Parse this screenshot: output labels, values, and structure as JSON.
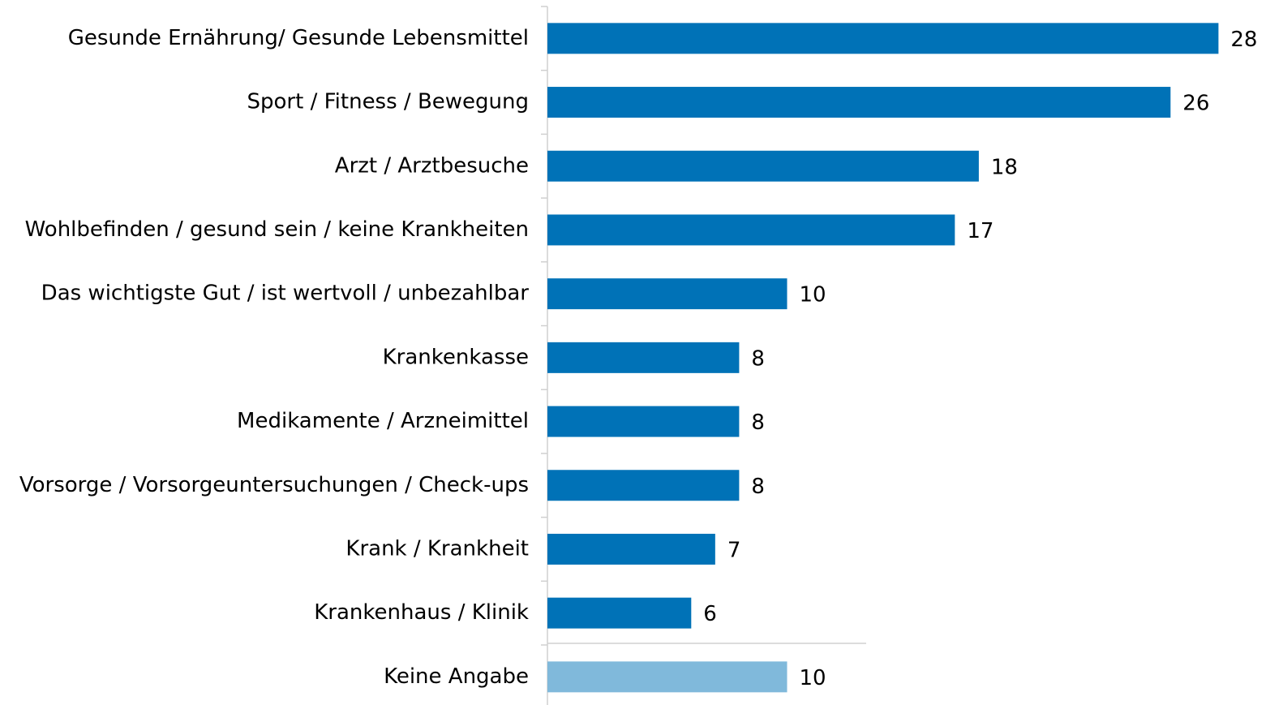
{
  "chart_data": {
    "type": "bar",
    "orientation": "horizontal",
    "categories": [
      "Gesunde Ernährung/ Gesunde Lebensmittel",
      "Sport / Fitness / Bewegung",
      "Arzt / Arztbesuche",
      "Wohlbefinden / gesund sein / keine Krankheiten",
      "Das wichtigste Gut / ist wertvoll / unbezahlbar",
      "Krankenkasse",
      "Medikamente / Arzneimittel",
      "Vorsorge / Vorsorgeuntersuchungen / Check-ups",
      "Krank / Krankheit",
      "Krankenhaus / Klinik",
      "Keine Angabe"
    ],
    "values": [
      28,
      26,
      18,
      17,
      10,
      8,
      8,
      8,
      7,
      6,
      10
    ],
    "colors": [
      "#0072b7",
      "#0072b7",
      "#0072b7",
      "#0072b7",
      "#0072b7",
      "#0072b7",
      "#0072b7",
      "#0072b7",
      "#0072b7",
      "#0072b7",
      "#80b9db"
    ]
  }
}
